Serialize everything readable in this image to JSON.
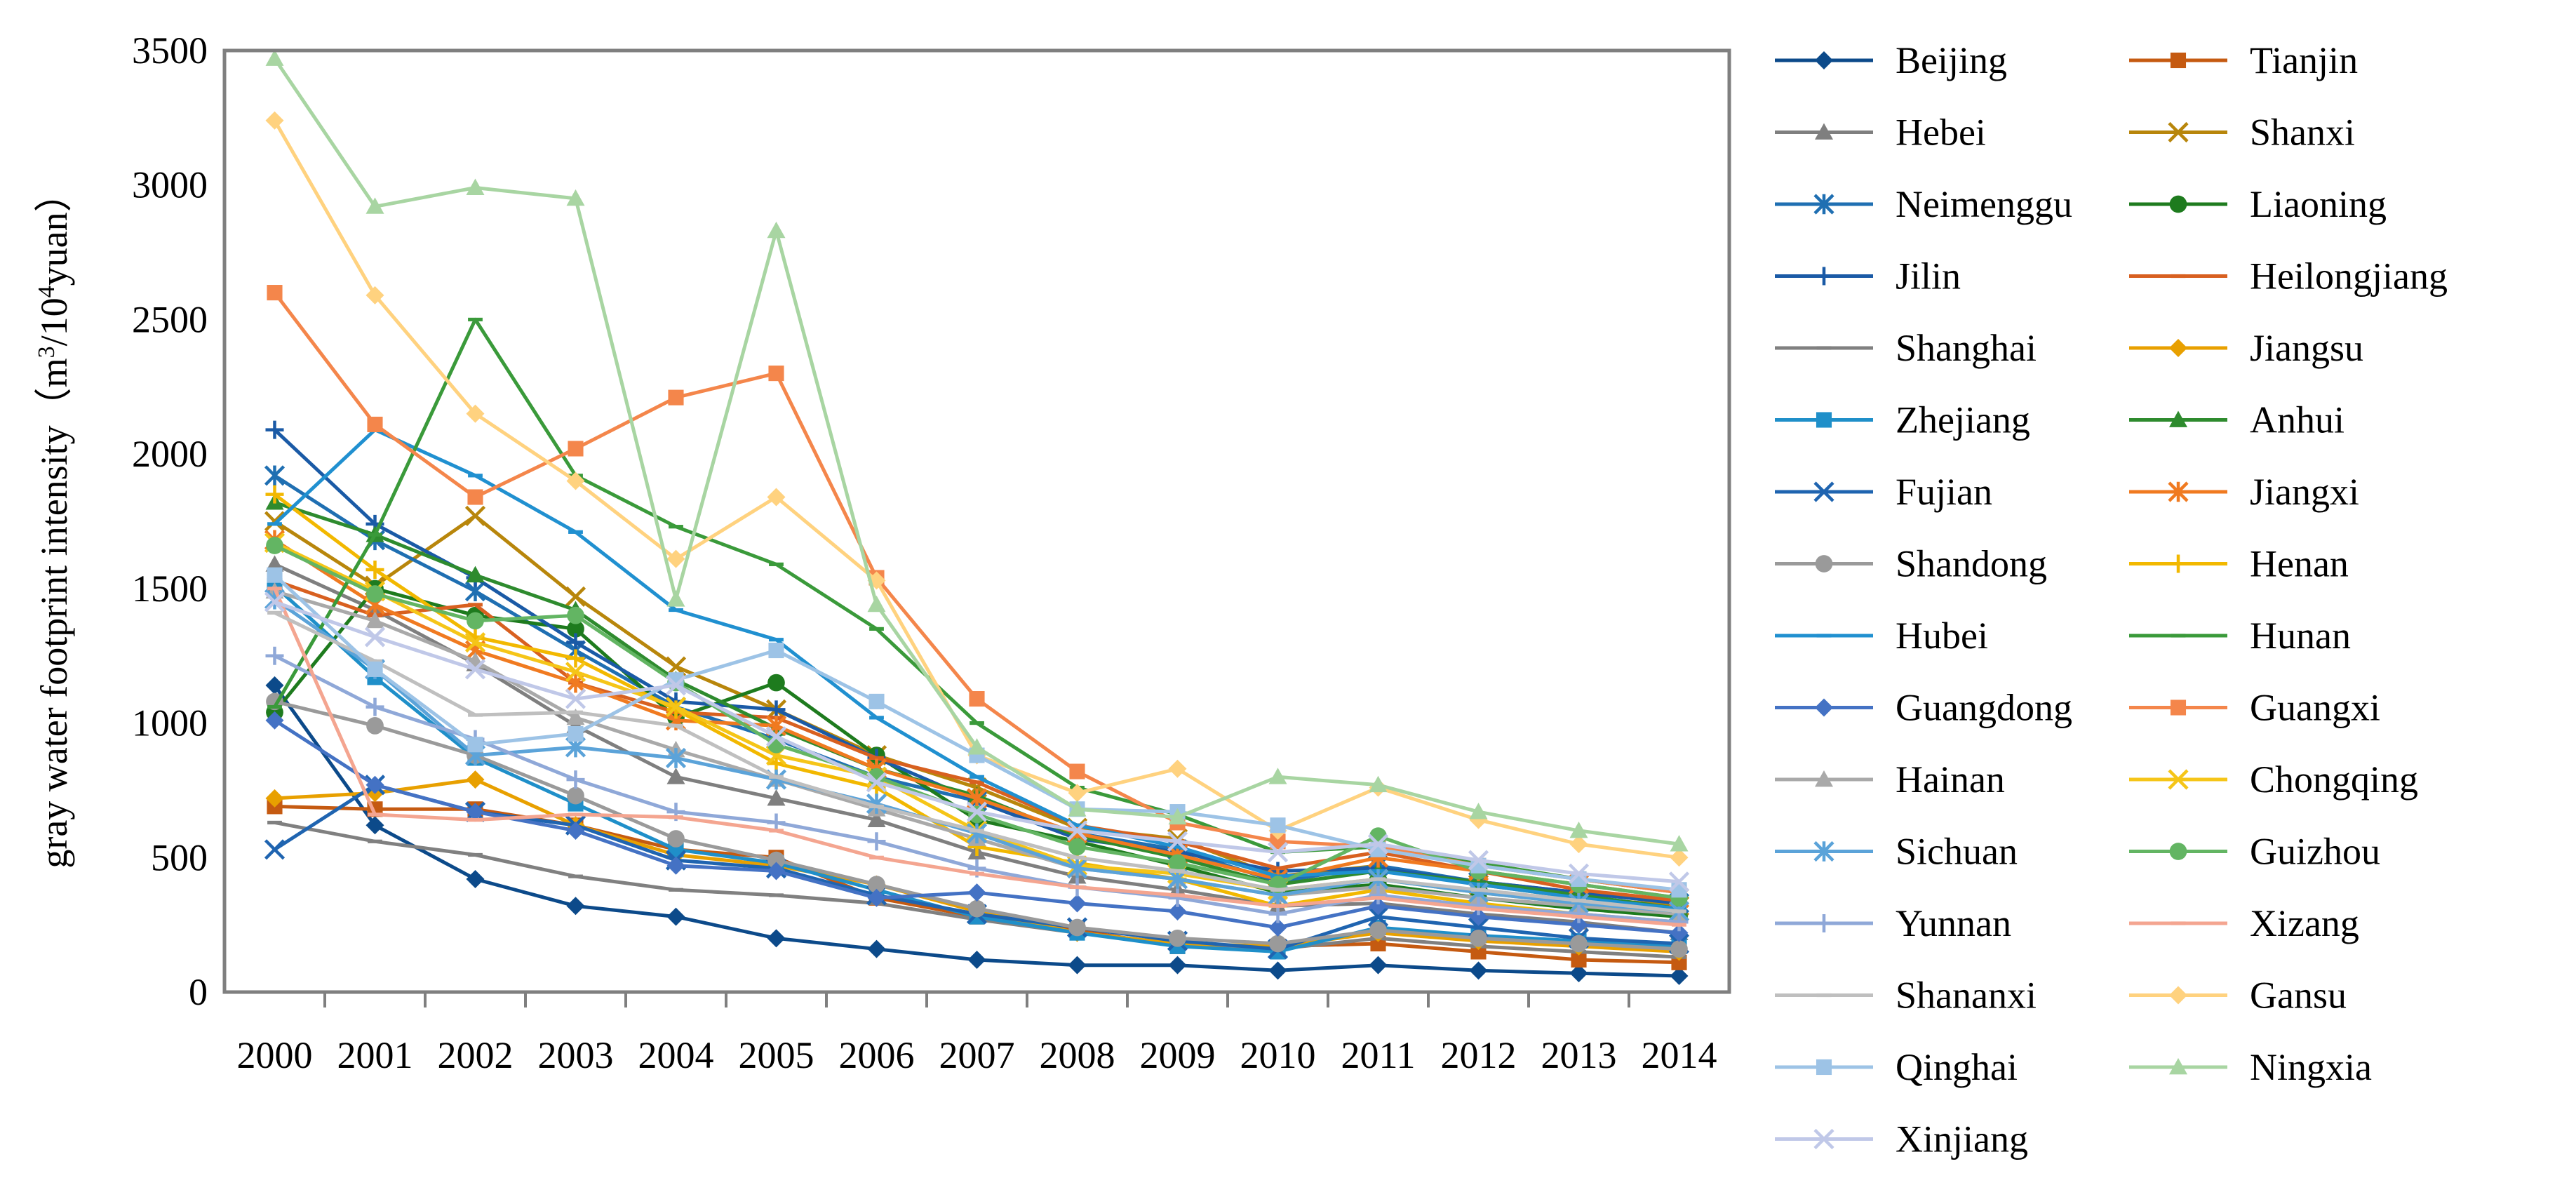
{
  "chart_data": {
    "type": "line",
    "title": "",
    "xlabel": "",
    "ylabel": "gray water footprint intensity（m³/10⁴yuan）",
    "ylabel_parts": [
      "gray water footprint intensity（m",
      "3",
      "/10",
      "4",
      "yuan）"
    ],
    "ylim": [
      0,
      3500
    ],
    "yticks": [
      "0",
      "500",
      "1000",
      "1500",
      "2000",
      "2500",
      "3000",
      "3500"
    ],
    "categories": [
      "2000",
      "2001",
      "2002",
      "2003",
      "2004",
      "2005",
      "2006",
      "2007",
      "2008",
      "2009",
      "2010",
      "2011",
      "2012",
      "2013",
      "2014"
    ],
    "series": [
      {
        "name": "Beijing",
        "color": "#0c4a8a",
        "marker": "diamond",
        "values": [
          1140,
          620,
          420,
          320,
          280,
          200,
          160,
          120,
          100,
          100,
          80,
          100,
          80,
          70,
          60
        ]
      },
      {
        "name": "Tianjin",
        "color": "#c55a11",
        "marker": "square",
        "values": [
          690,
          680,
          680,
          620,
          530,
          500,
          350,
          280,
          230,
          170,
          170,
          180,
          150,
          120,
          110
        ]
      },
      {
        "name": "Hebei",
        "color": "#7f7f7f",
        "marker": "triangle",
        "values": [
          1590,
          1420,
          1220,
          990,
          800,
          720,
          640,
          520,
          430,
          380,
          320,
          330,
          290,
          260,
          220
        ]
      },
      {
        "name": "Shanxi",
        "color": "#b8860b",
        "marker": "x",
        "values": [
          1750,
          1510,
          1770,
          1470,
          1210,
          1050,
          880,
          760,
          610,
          570,
          430,
          470,
          400,
          350,
          320
        ]
      },
      {
        "name": "Neimenggu",
        "color": "#1f6fb2",
        "marker": "star",
        "values": [
          1920,
          1680,
          1490,
          1270,
          1060,
          940,
          800,
          710,
          590,
          530,
          410,
          470,
          410,
          370,
          330
        ]
      },
      {
        "name": "Liaoning",
        "color": "#1e7b1e",
        "marker": "circle",
        "values": [
          1040,
          1500,
          1400,
          1350,
          1020,
          1150,
          880,
          640,
          560,
          470,
          370,
          400,
          350,
          310,
          280
        ]
      },
      {
        "name": "Jilin",
        "color": "#1a5aa6",
        "marker": "plus",
        "values": [
          2090,
          1740,
          1540,
          1300,
          1080,
          1050,
          870,
          710,
          570,
          520,
          450,
          460,
          410,
          370,
          330
        ]
      },
      {
        "name": "Heilongjiang",
        "color": "#d86020",
        "marker": "dash",
        "values": [
          1530,
          1400,
          1440,
          1150,
          1040,
          1020,
          870,
          780,
          620,
          560,
          460,
          520,
          450,
          380,
          340
        ]
      },
      {
        "name": "Shanghai",
        "color": "#808080",
        "marker": "dash",
        "values": [
          630,
          560,
          510,
          430,
          380,
          360,
          330,
          270,
          220,
          180,
          160,
          200,
          170,
          150,
          130
        ]
      },
      {
        "name": "Jiangsu",
        "color": "#e8a000",
        "marker": "diamond",
        "values": [
          720,
          740,
          790,
          620,
          510,
          470,
          400,
          300,
          220,
          180,
          170,
          220,
          190,
          170,
          150
        ]
      },
      {
        "name": "Zhejiang",
        "color": "#1f8fc9",
        "marker": "square",
        "values": [
          1510,
          1170,
          870,
          700,
          530,
          480,
          380,
          280,
          220,
          170,
          150,
          240,
          210,
          190,
          170
        ]
      },
      {
        "name": "Anhui",
        "color": "#2e8b2e",
        "marker": "triangle",
        "values": [
          1820,
          1700,
          1550,
          1420,
          1160,
          980,
          830,
          730,
          580,
          500,
          400,
          450,
          410,
          360,
          310
        ]
      },
      {
        "name": "Fujian",
        "color": "#1f64b0",
        "marker": "x",
        "values": [
          530,
          770,
          670,
          620,
          490,
          460,
          360,
          290,
          240,
          190,
          160,
          280,
          240,
          200,
          180
        ]
      },
      {
        "name": "Jiangxi",
        "color": "#f07a20",
        "marker": "star",
        "values": [
          1680,
          1440,
          1270,
          1150,
          1010,
          990,
          830,
          720,
          590,
          510,
          420,
          500,
          450,
          400,
          350
        ]
      },
      {
        "name": "Shandong",
        "color": "#9a9a9a",
        "marker": "circle",
        "values": [
          1080,
          990,
          880,
          730,
          570,
          490,
          400,
          310,
          240,
          200,
          180,
          230,
          200,
          180,
          160
        ]
      },
      {
        "name": "Henan",
        "color": "#f2b800",
        "marker": "plus",
        "values": [
          1850,
          1570,
          1320,
          1240,
          1050,
          850,
          760,
          540,
          480,
          420,
          320,
          380,
          330,
          290,
          260
        ]
      },
      {
        "name": "Hubei",
        "color": "#2090d0",
        "marker": "dash",
        "values": [
          1740,
          2090,
          1920,
          1710,
          1420,
          1310,
          1020,
          800,
          620,
          540,
          430,
          450,
          400,
          350,
          310
        ]
      },
      {
        "name": "Hunan",
        "color": "#3a9a3a",
        "marker": "dash",
        "values": [
          1060,
          1700,
          2500,
          1920,
          1730,
          1590,
          1350,
          1000,
          760,
          660,
          520,
          540,
          480,
          420,
          370
        ]
      },
      {
        "name": "Guangdong",
        "color": "#4472c4",
        "marker": "diamond",
        "values": [
          1010,
          770,
          670,
          600,
          470,
          450,
          350,
          370,
          330,
          300,
          240,
          320,
          280,
          250,
          220
        ]
      },
      {
        "name": "Guangxi",
        "color": "#f4864b",
        "marker": "square",
        "values": [
          2600,
          2110,
          1840,
          2020,
          2210,
          2300,
          1540,
          1090,
          820,
          630,
          560,
          540,
          470,
          420,
          370
        ]
      },
      {
        "name": "Hainan",
        "color": "#a9a9a9",
        "marker": "triangle",
        "values": [
          1490,
          1380,
          1230,
          1020,
          900,
          790,
          680,
          570,
          460,
          420,
          360,
          390,
          350,
          320,
          290
        ]
      },
      {
        "name": "Chongqing",
        "color": "#f5c518",
        "marker": "x",
        "values": [
          1670,
          1490,
          1300,
          1190,
          1060,
          880,
          800,
          600,
          470,
          440,
          380,
          420,
          370,
          330,
          300
        ]
      },
      {
        "name": "Sichuan",
        "color": "#5ba3d9",
        "marker": "star",
        "values": [
          1460,
          1200,
          880,
          910,
          870,
          790,
          700,
          590,
          460,
          420,
          360,
          420,
          370,
          330,
          300
        ]
      },
      {
        "name": "Guizhou",
        "color": "#63b563",
        "marker": "circle",
        "values": [
          1660,
          1480,
          1380,
          1400,
          1150,
          920,
          800,
          660,
          540,
          480,
          400,
          580,
          450,
          400,
          350
        ]
      },
      {
        "name": "Yunnan",
        "color": "#8fa8d8",
        "marker": "plus",
        "values": [
          1250,
          1060,
          940,
          790,
          670,
          630,
          560,
          460,
          390,
          350,
          290,
          360,
          320,
          290,
          260
        ]
      },
      {
        "name": "Xizang",
        "color": "#f4a590",
        "marker": "dash",
        "values": [
          1500,
          660,
          640,
          660,
          650,
          600,
          500,
          440,
          390,
          360,
          320,
          350,
          310,
          280,
          250
        ]
      },
      {
        "name": "Shananxi",
        "color": "#bfbfbf",
        "marker": "dash",
        "values": [
          1410,
          1230,
          1030,
          1040,
          990,
          800,
          690,
          600,
          500,
          450,
          380,
          420,
          380,
          340,
          300
        ]
      },
      {
        "name": "Gansu",
        "color": "#ffd27f",
        "marker": "diamond",
        "values": [
          3240,
          2590,
          2150,
          1900,
          1610,
          1840,
          1530,
          880,
          740,
          830,
          600,
          760,
          640,
          550,
          500
        ]
      },
      {
        "name": "Qinghai",
        "color": "#9dc3e6",
        "marker": "square",
        "values": [
          1550,
          1200,
          920,
          960,
          1160,
          1270,
          1080,
          880,
          680,
          670,
          620,
          530,
          470,
          420,
          380
        ]
      },
      {
        "name": "Ningxia",
        "color": "#a8d5a2",
        "marker": "triangle",
        "values": [
          3470,
          2920,
          2990,
          2950,
          1460,
          2830,
          1440,
          910,
          680,
          650,
          800,
          770,
          670,
          600,
          550
        ]
      },
      {
        "name": "Xinjiang",
        "color": "#c0c8e8",
        "marker": "x",
        "values": [
          1450,
          1320,
          1200,
          1090,
          1140,
          950,
          780,
          670,
          600,
          560,
          520,
          550,
          490,
          440,
          410
        ]
      }
    ]
  }
}
